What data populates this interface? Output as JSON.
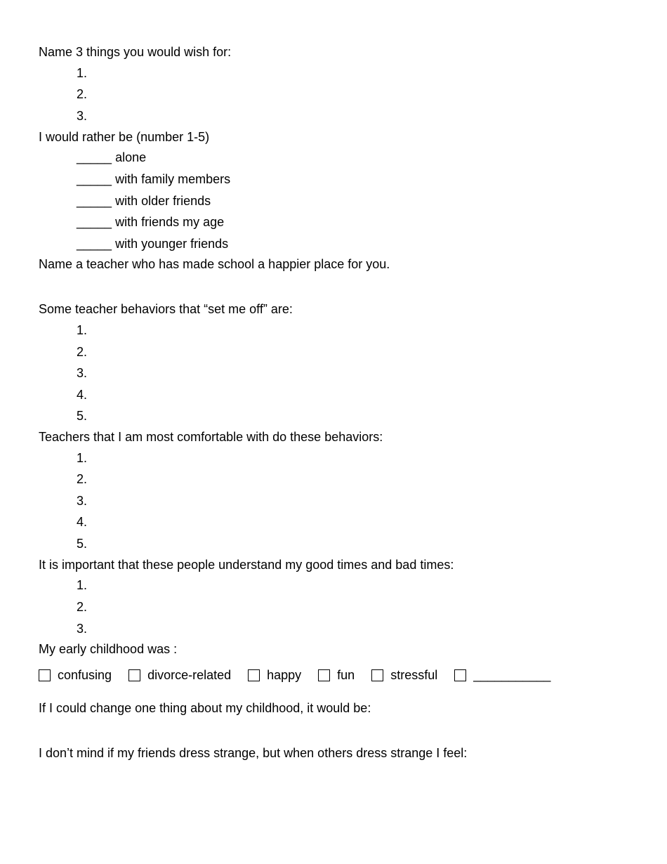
{
  "wishes": {
    "prompt": "Name 3 things you would wish for:",
    "items": [
      "1.",
      "2.",
      "3."
    ]
  },
  "ratherBe": {
    "prompt": "I would rather be (number 1-5)",
    "blank": "_____",
    "options": [
      "alone",
      "with family members",
      "with older friends",
      "with friends my age",
      "with younger friends"
    ]
  },
  "teacherHappy": {
    "prompt": "Name a teacher who has made school a happier place for you."
  },
  "setMeOff": {
    "prompt": "Some teacher behaviors that “set me off” are:",
    "items": [
      "1.",
      "2.",
      "3.",
      "4.",
      "5."
    ]
  },
  "comfortable": {
    "prompt": "Teachers that I am most comfortable with do these behaviors:",
    "items": [
      "1.",
      "2.",
      "3.",
      "4.",
      "5."
    ]
  },
  "important": {
    "prompt": "It is important that these people understand my good times and bad times:",
    "items": [
      "1.",
      "2.",
      "3."
    ]
  },
  "childhood": {
    "prompt": "My early childhood was :",
    "options": [
      "confusing",
      "divorce-related",
      "happy",
      "fun",
      "stressful"
    ],
    "blank": "___________"
  },
  "changeOne": {
    "prompt": "If I could change one thing about my childhood, it would be:"
  },
  "dressStrange": {
    "prompt": "I don’t mind if my friends dress strange, but  when others dress strange I feel:"
  }
}
